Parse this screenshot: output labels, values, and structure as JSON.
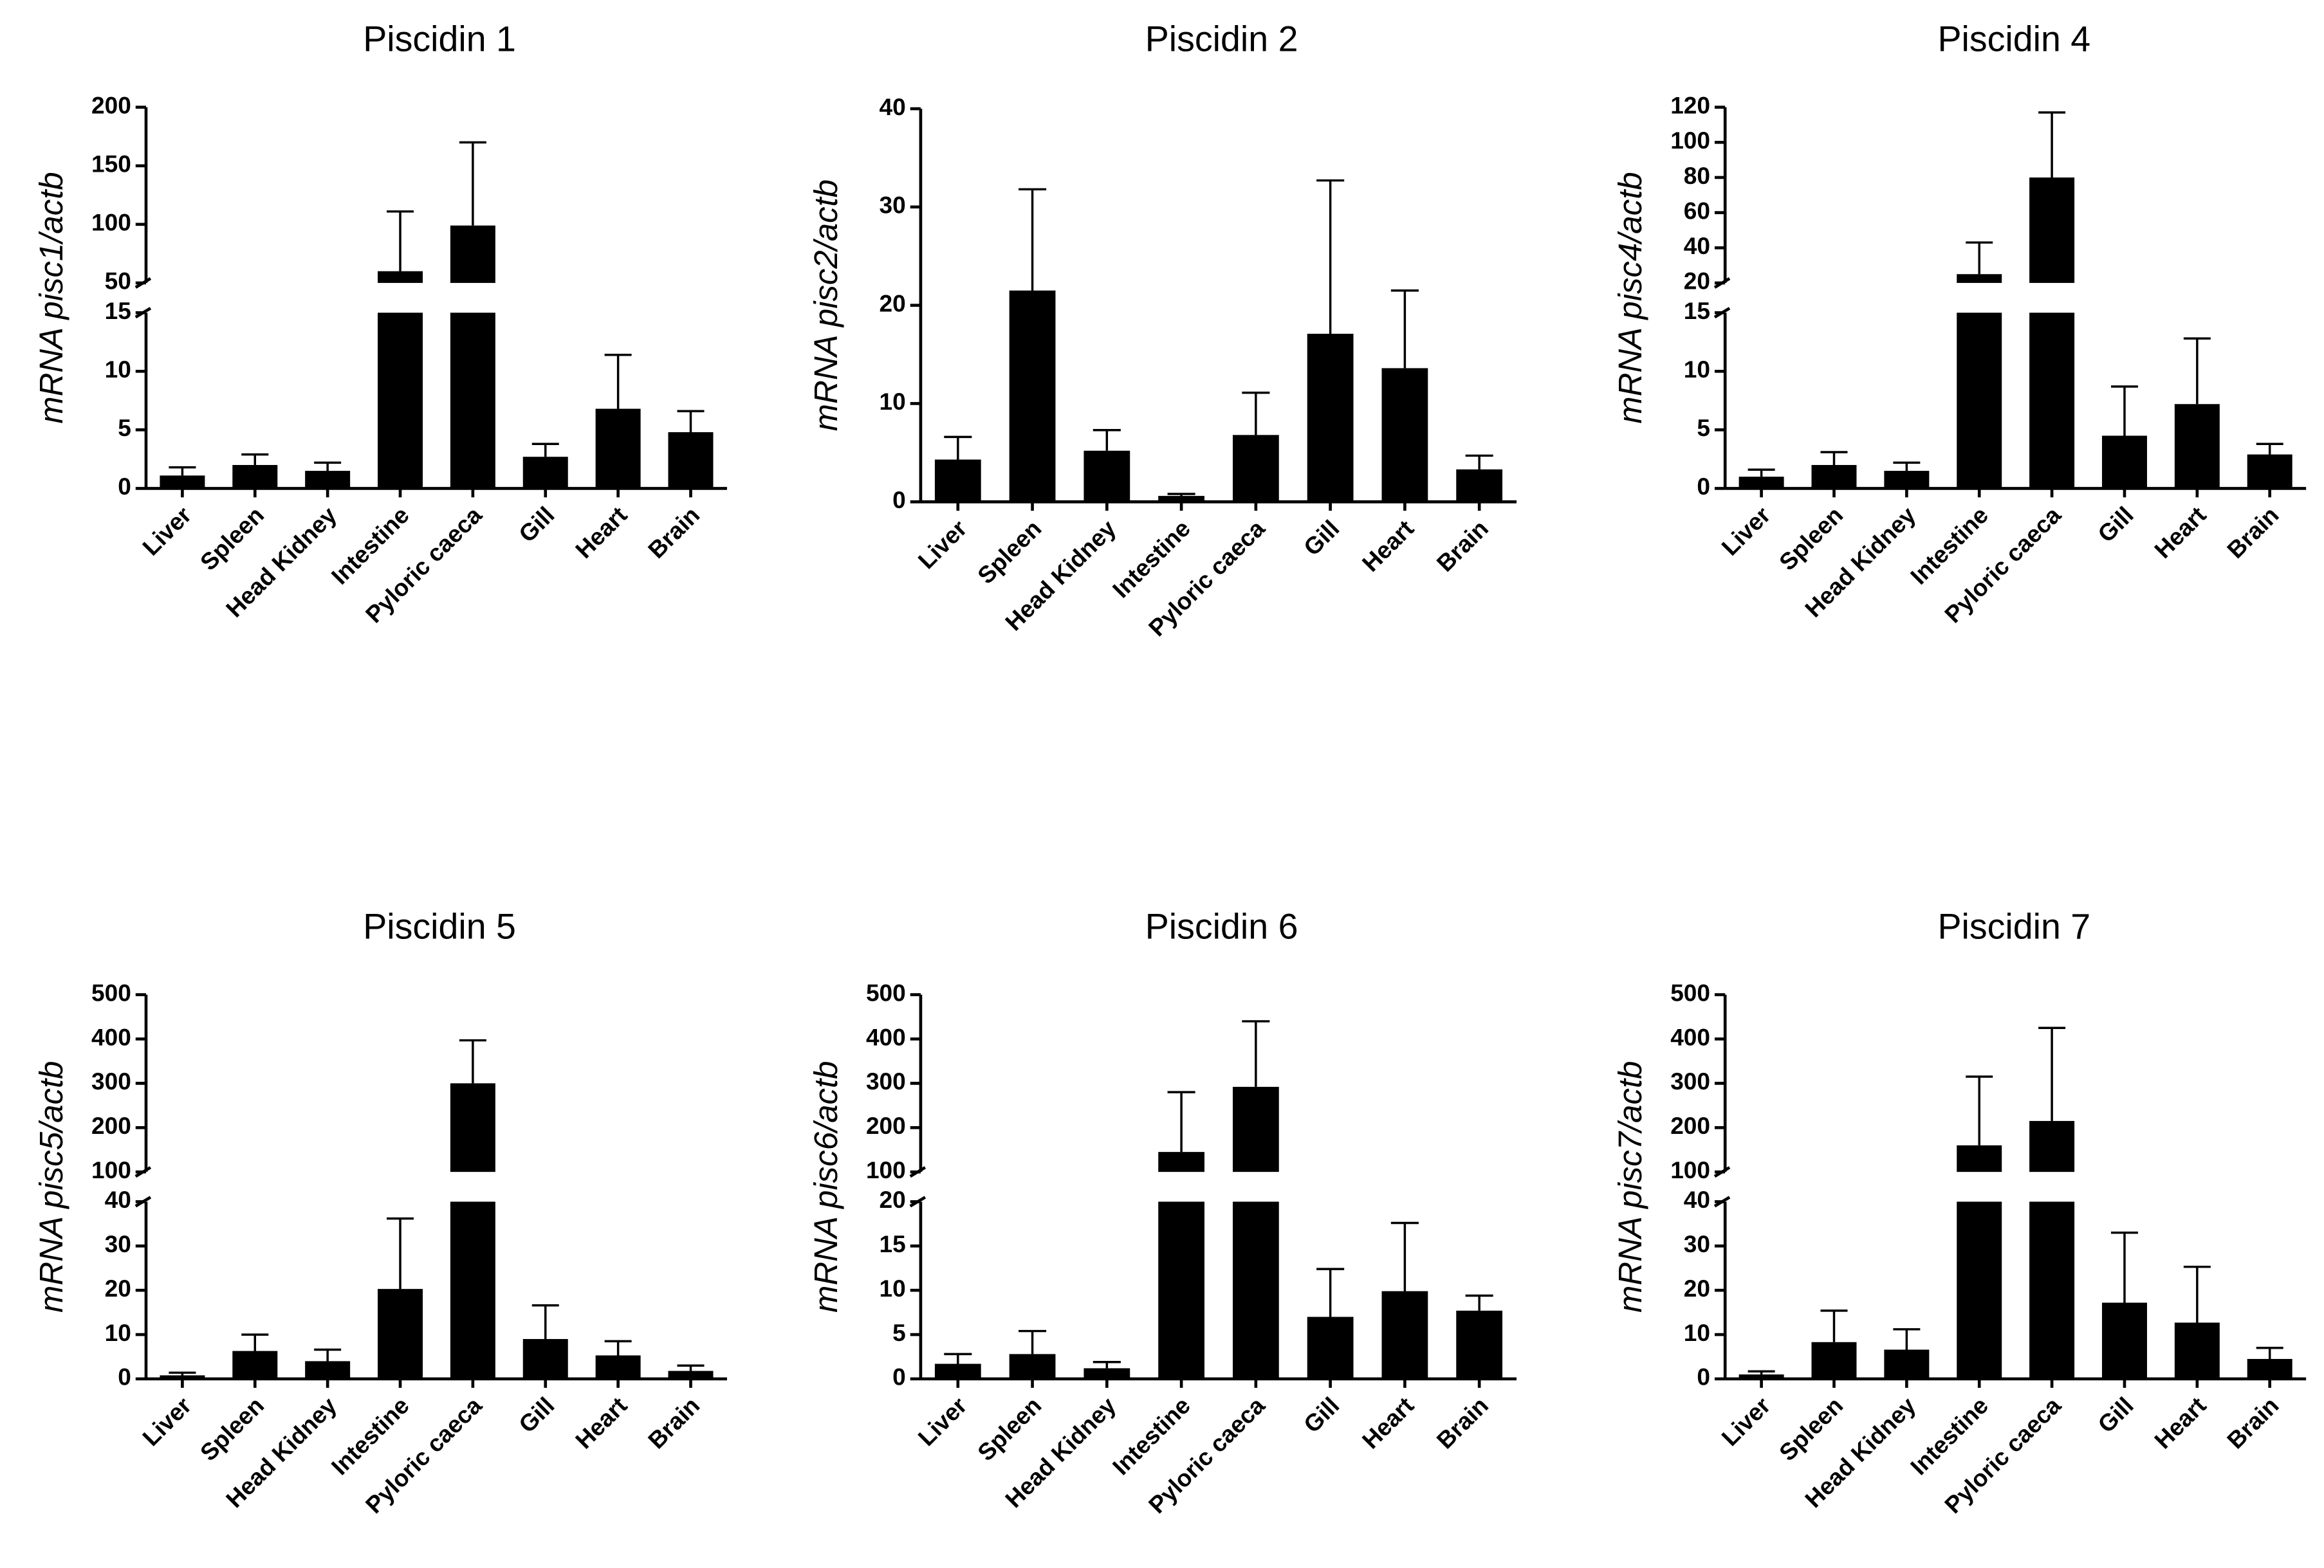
{
  "chart_data": [
    {
      "type": "bar",
      "title": "Piscidin 1",
      "ylabel": "mRNA pisc1/actb",
      "color": "#000000",
      "categories": [
        "Liver",
        "Spleen",
        "Head Kidney",
        "Intestine",
        "Pyloric caeca",
        "Gill",
        "Heart",
        "Brain"
      ],
      "values": [
        1.1,
        2.0,
        1.5,
        60,
        99,
        2.7,
        6.8,
        4.8
      ],
      "errors": [
        0.7,
        0.9,
        0.7,
        51,
        71,
        1.1,
        4.6,
        1.8
      ],
      "y_segments": [
        {
          "ylim": [
            0,
            15
          ],
          "yticks": [
            0,
            5,
            10,
            15
          ]
        },
        {
          "ylim": [
            50,
            200
          ],
          "yticks": [
            50,
            100,
            150,
            200
          ]
        }
      ]
    },
    {
      "type": "bar",
      "title": "Piscidin 2",
      "ylabel": "mRNA pisc2/actb",
      "color": "#000000",
      "categories": [
        "Liver",
        "Spleen",
        "Head Kidney",
        "Intestine",
        "Pyloric caeca",
        "Gill",
        "Heart",
        "Brain"
      ],
      "values": [
        4.3,
        21.5,
        5.2,
        0.6,
        6.8,
        17.1,
        13.6,
        3.3
      ],
      "errors": [
        2.3,
        10.3,
        2.1,
        0.2,
        4.3,
        15.6,
        7.9,
        1.4
      ],
      "y_segments": [
        {
          "ylim": [
            0,
            40
          ],
          "yticks": [
            0,
            10,
            20,
            30,
            40
          ]
        }
      ]
    },
    {
      "type": "bar",
      "title": "Piscidin 4",
      "ylabel": "mRNA pisc4/actb",
      "color": "#000000",
      "categories": [
        "Liver",
        "Spleen",
        "Head Kidney",
        "Intestine",
        "Pyloric caeca",
        "Gill",
        "Heart",
        "Brain"
      ],
      "values": [
        1.0,
        2.0,
        1.5,
        25,
        80,
        4.5,
        7.2,
        2.9
      ],
      "errors": [
        0.6,
        1.1,
        0.7,
        18,
        37,
        4.2,
        5.6,
        0.9
      ],
      "y_segments": [
        {
          "ylim": [
            0,
            15
          ],
          "yticks": [
            0,
            5,
            10,
            15
          ]
        },
        {
          "ylim": [
            20,
            120
          ],
          "yticks": [
            20,
            40,
            60,
            80,
            100,
            120
          ]
        }
      ]
    },
    {
      "type": "bar",
      "title": "Piscidin 5",
      "ylabel": "mRNA pisc5/actb",
      "color": "#000000",
      "categories": [
        "Liver",
        "Spleen",
        "Head Kidney",
        "Intestine",
        "Pyloric caeca",
        "Gill",
        "Heart",
        "Brain"
      ],
      "values": [
        0.8,
        6.3,
        4.0,
        20.3,
        300,
        9.0,
        5.3,
        1.8
      ],
      "errors": [
        0.6,
        3.7,
        2.6,
        15.9,
        97,
        7.6,
        3.2,
        1.2
      ],
      "y_segments": [
        {
          "ylim": [
            0,
            40
          ],
          "yticks": [
            0,
            10,
            20,
            30,
            40
          ]
        },
        {
          "ylim": [
            100,
            500
          ],
          "yticks": [
            100,
            200,
            300,
            400,
            500
          ]
        }
      ]
    },
    {
      "type": "bar",
      "title": "Piscidin 6",
      "ylabel": "mRNA pisc6/actb",
      "color": "#000000",
      "categories": [
        "Liver",
        "Spleen",
        "Head Kidney",
        "Intestine",
        "Pyloric caeca",
        "Gill",
        "Heart",
        "Brain"
      ],
      "values": [
        1.7,
        2.8,
        1.2,
        145,
        292,
        7.0,
        9.9,
        7.7
      ],
      "errors": [
        1.1,
        2.6,
        0.7,
        135,
        148,
        5.4,
        7.7,
        1.7
      ],
      "y_segments": [
        {
          "ylim": [
            0,
            20
          ],
          "yticks": [
            0,
            5,
            10,
            15,
            20
          ]
        },
        {
          "ylim": [
            100,
            500
          ],
          "yticks": [
            100,
            200,
            300,
            400,
            500
          ]
        }
      ]
    },
    {
      "type": "bar",
      "title": "Piscidin 7",
      "ylabel": "mRNA pisc7/actb",
      "color": "#000000",
      "categories": [
        "Liver",
        "Spleen",
        "Head Kidney",
        "Intestine",
        "Pyloric caeca",
        "Gill",
        "Heart",
        "Brain"
      ],
      "values": [
        1.0,
        8.3,
        6.6,
        160,
        215,
        17.2,
        12.7,
        4.5
      ],
      "errors": [
        0.7,
        7.1,
        4.6,
        155,
        210,
        15.8,
        12.6,
        2.5
      ],
      "y_segments": [
        {
          "ylim": [
            0,
            40
          ],
          "yticks": [
            0,
            10,
            20,
            30,
            40
          ]
        },
        {
          "ylim": [
            100,
            500
          ],
          "yticks": [
            100,
            200,
            300,
            400,
            500
          ]
        }
      ]
    }
  ]
}
